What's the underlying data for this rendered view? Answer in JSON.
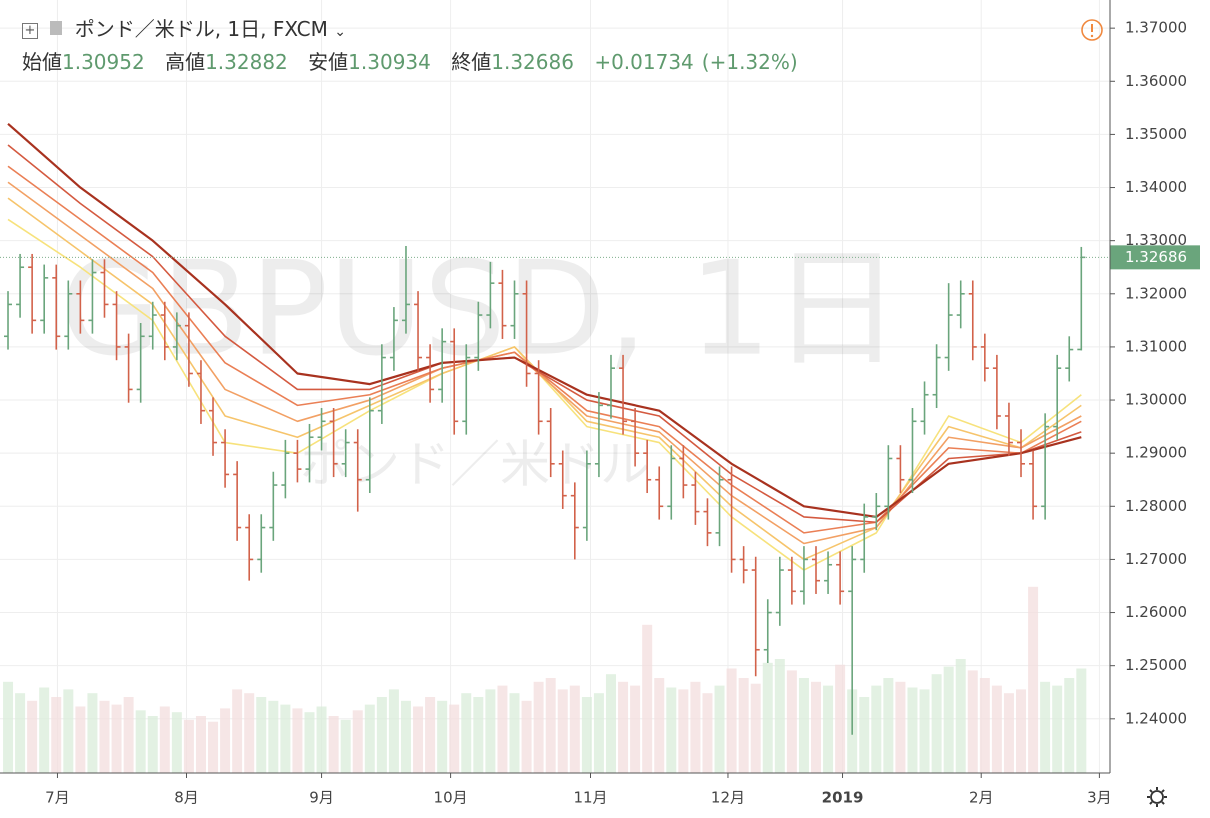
{
  "chart_data": {
    "type": "ohlc",
    "title": "ポンド／米ドル, 1日, FXCM",
    "labels": {
      "open": "始値",
      "high": "高値",
      "low": "安値",
      "close": "終値"
    },
    "change": "+0.01734",
    "change_pct": "(+1.32%)",
    "watermark": "GBPUSD, 1日",
    "watermark_sub": "ポンド／米ドル",
    "grid": true,
    "up_color": "#6aa57c",
    "down_color": "#d2624a",
    "xlim": [
      -0.25,
      90.55
    ],
    "xticks": [
      {
        "value": 4.1,
        "label": "7月"
      },
      {
        "value": 14.8,
        "label": "8月"
      },
      {
        "value": 26,
        "label": "9月"
      },
      {
        "value": 36.7,
        "label": "10月"
      },
      {
        "value": 48.3,
        "label": "11月"
      },
      {
        "value": 59.7,
        "label": "12月"
      },
      {
        "value": 69.2,
        "label": "2019"
      },
      {
        "value": 80.7,
        "label": "2月"
      },
      {
        "value": 90.5,
        "label": "3月"
      }
    ],
    "ylim": [
      1.2298,
      1.3753
    ],
    "yticks": [
      {
        "value": 1.24,
        "label": "1.24000"
      },
      {
        "value": 1.25,
        "label": "1.25000"
      },
      {
        "value": 1.26,
        "label": "1.26000"
      },
      {
        "value": 1.27,
        "label": "1.27000"
      },
      {
        "value": 1.28,
        "label": "1.28000"
      },
      {
        "value": 1.29,
        "label": "1.29000"
      },
      {
        "value": 1.3,
        "label": "1.30000"
      },
      {
        "value": 1.31,
        "label": "1.31000"
      },
      {
        "value": 1.32,
        "label": "1.32000"
      },
      {
        "value": 1.33,
        "label": "1.33000"
      },
      {
        "value": 1.34,
        "label": "1.34000"
      },
      {
        "value": 1.35,
        "label": "1.35000"
      },
      {
        "value": 1.36,
        "label": "1.36000"
      },
      {
        "value": 1.37,
        "label": "1.37000"
      }
    ],
    "open": [
      1.312,
      1.318,
      1.325,
      1.315,
      1.323,
      1.312,
      1.32,
      1.315,
      1.324,
      1.318,
      1.31,
      1.302,
      1.312,
      1.316,
      1.31,
      1.314,
      1.305,
      1.298,
      1.292,
      1.286,
      1.276,
      1.27,
      1.276,
      1.284,
      1.29,
      1.287,
      1.293,
      1.296,
      1.288,
      1.292,
      1.285,
      1.298,
      1.308,
      1.315,
      1.318,
      1.308,
      1.302,
      1.311,
      1.296,
      1.308,
      1.316,
      1.322,
      1.314,
      1.32,
      1.305,
      1.296,
      1.288,
      1.282,
      1.276,
      1.288,
      1.299,
      1.306,
      1.296,
      1.29,
      1.285,
      1.28,
      1.289,
      1.284,
      1.279,
      1.275,
      1.285,
      1.27,
      1.268,
      1.253,
      1.26,
      1.268,
      1.264,
      1.27,
      1.266,
      1.269,
      1.264,
      1.27,
      1.278,
      1.28,
      1.289,
      1.285,
      1.296,
      1.301,
      1.308,
      1.316,
      1.32,
      1.31,
      1.306,
      1.297,
      1.292,
      1.288,
      1.28,
      1.295,
      1.306,
      1.30952
    ],
    "high": [
      1.3205,
      1.3275,
      1.3275,
      1.3255,
      1.3255,
      1.3225,
      1.3225,
      1.3265,
      1.3265,
      1.3205,
      1.3125,
      1.3145,
      1.3185,
      1.3185,
      1.3165,
      1.3165,
      1.3075,
      1.3005,
      1.2945,
      1.2885,
      1.2785,
      1.2785,
      1.2865,
      1.2925,
      1.2925,
      1.2955,
      1.2985,
      1.2985,
      1.2945,
      1.2945,
      1.3005,
      1.3105,
      1.3175,
      1.329,
      1.3205,
      1.3105,
      1.3135,
      1.3135,
      1.3105,
      1.3185,
      1.326,
      1.3245,
      1.3225,
      1.3225,
      1.3075,
      1.2985,
      1.2905,
      1.2845,
      1.2905,
      1.3015,
      1.3085,
      1.3085,
      1.2985,
      1.2925,
      1.2875,
      1.2915,
      1.2915,
      1.2865,
      1.2815,
      1.2875,
      1.2875,
      1.2725,
      1.2705,
      1.2625,
      1.2705,
      1.2705,
      1.2725,
      1.2725,
      1.2715,
      1.2715,
      1.2725,
      1.2805,
      1.2825,
      1.2915,
      1.2915,
      1.2985,
      1.3035,
      1.3105,
      1.322,
      1.3225,
      1.3225,
      1.3125,
      1.3085,
      1.2995,
      1.2945,
      1.2905,
      1.2975,
      1.3085,
      1.312,
      1.32882
    ],
    "low": [
      1.3095,
      1.3155,
      1.3125,
      1.3125,
      1.3095,
      1.3095,
      1.3125,
      1.3125,
      1.3155,
      1.3075,
      1.2995,
      1.2995,
      1.3095,
      1.3075,
      1.3075,
      1.3025,
      1.2955,
      1.2895,
      1.2835,
      1.2735,
      1.266,
      1.2675,
      1.2735,
      1.2815,
      1.2845,
      1.2845,
      1.2905,
      1.2855,
      1.2855,
      1.279,
      1.2825,
      1.2955,
      1.3055,
      1.3125,
      1.3055,
      1.2995,
      1.2995,
      1.2935,
      1.2935,
      1.3055,
      1.3135,
      1.3115,
      1.3115,
      1.3025,
      1.2935,
      1.2855,
      1.2795,
      1.27,
      1.2735,
      1.2855,
      1.2965,
      1.2935,
      1.2875,
      1.2825,
      1.2775,
      1.2775,
      1.2815,
      1.2765,
      1.2725,
      1.2725,
      1.2675,
      1.2655,
      1.248,
      1.2505,
      1.2575,
      1.2615,
      1.2615,
      1.2635,
      1.2635,
      1.2615,
      1.237,
      1.2675,
      1.2755,
      1.2775,
      1.2825,
      1.2825,
      1.2935,
      1.2985,
      1.3055,
      1.3135,
      1.3075,
      1.3035,
      1.2945,
      1.2895,
      1.2855,
      1.2775,
      1.2775,
      1.2925,
      1.3035,
      1.30934
    ],
    "close": [
      1.318,
      1.325,
      1.315,
      1.323,
      1.312,
      1.32,
      1.315,
      1.324,
      1.318,
      1.31,
      1.302,
      1.312,
      1.316,
      1.31,
      1.314,
      1.305,
      1.298,
      1.292,
      1.286,
      1.276,
      1.27,
      1.276,
      1.284,
      1.29,
      1.287,
      1.293,
      1.296,
      1.288,
      1.292,
      1.285,
      1.298,
      1.308,
      1.315,
      1.318,
      1.308,
      1.302,
      1.311,
      1.296,
      1.308,
      1.316,
      1.322,
      1.314,
      1.32,
      1.305,
      1.296,
      1.288,
      1.282,
      1.276,
      1.288,
      1.299,
      1.306,
      1.296,
      1.29,
      1.285,
      1.28,
      1.289,
      1.284,
      1.279,
      1.275,
      1.285,
      1.27,
      1.268,
      1.253,
      1.26,
      1.268,
      1.264,
      1.27,
      1.266,
      1.269,
      1.264,
      1.27,
      1.278,
      1.28,
      1.289,
      1.285,
      1.296,
      1.301,
      1.308,
      1.316,
      1.32,
      1.31,
      1.306,
      1.297,
      1.292,
      1.288,
      1.28,
      1.295,
      1.306,
      1.3095,
      1.32686
    ],
    "volume_lim": [
      0,
      100
    ],
    "volume": [
      48,
      42,
      38,
      45,
      40,
      44,
      35,
      42,
      38,
      36,
      40,
      33,
      30,
      35,
      32,
      28,
      30,
      27,
      34,
      44,
      42,
      40,
      38,
      36,
      34,
      32,
      35,
      30,
      28,
      33,
      36,
      40,
      44,
      38,
      35,
      40,
      38,
      36,
      42,
      40,
      44,
      46,
      42,
      38,
      48,
      50,
      44,
      46,
      40,
      42,
      52,
      48,
      46,
      78,
      50,
      45,
      44,
      48,
      42,
      46,
      55,
      50,
      47,
      58,
      60,
      54,
      50,
      48,
      46,
      57,
      44,
      40,
      46,
      50,
      48,
      45,
      44,
      52,
      56,
      60,
      54,
      50,
      46,
      42,
      44,
      98,
      48,
      46,
      50,
      55
    ],
    "ma_x": [
      0,
      6,
      12,
      18,
      24,
      30,
      36,
      42,
      48,
      54,
      60,
      66,
      72,
      78,
      84,
      89
    ],
    "ma_series": [
      {
        "color": "#f7e27c",
        "values": [
          1.334,
          1.325,
          1.315,
          1.292,
          1.29,
          1.298,
          1.305,
          1.31,
          1.295,
          1.292,
          1.278,
          1.268,
          1.275,
          1.297,
          1.292,
          1.301
        ]
      },
      {
        "color": "#f6c46b",
        "values": [
          1.338,
          1.328,
          1.318,
          1.297,
          1.293,
          1.299,
          1.305,
          1.31,
          1.296,
          1.293,
          1.28,
          1.27,
          1.276,
          1.295,
          1.291,
          1.299
        ]
      },
      {
        "color": "#f2a064",
        "values": [
          1.341,
          1.331,
          1.321,
          1.302,
          1.296,
          1.3,
          1.306,
          1.309,
          1.297,
          1.294,
          1.282,
          1.273,
          1.276,
          1.293,
          1.291,
          1.297
        ]
      },
      {
        "color": "#ea7f55",
        "values": [
          1.344,
          1.334,
          1.324,
          1.307,
          1.299,
          1.301,
          1.306,
          1.309,
          1.298,
          1.295,
          1.284,
          1.275,
          1.277,
          1.291,
          1.29,
          1.296
        ]
      },
      {
        "color": "#d45a40",
        "values": [
          1.348,
          1.337,
          1.327,
          1.312,
          1.302,
          1.302,
          1.307,
          1.308,
          1.3,
          1.297,
          1.286,
          1.278,
          1.277,
          1.289,
          1.29,
          1.294
        ]
      },
      {
        "color": "#a8321f",
        "values": [
          1.352,
          1.34,
          1.33,
          1.318,
          1.305,
          1.303,
          1.307,
          1.308,
          1.301,
          1.298,
          1.288,
          1.28,
          1.278,
          1.288,
          1.29,
          1.293
        ]
      }
    ]
  }
}
